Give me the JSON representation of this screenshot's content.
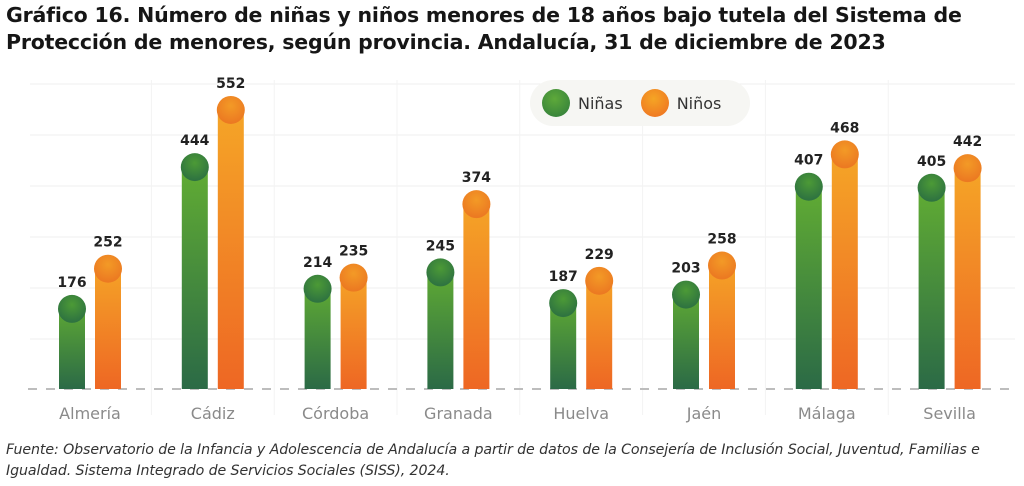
{
  "title": "Gráfico 16. Número de niñas y niños menores de 18 años bajo tutela del Sistema de Protección de menores, según provincia. Andalucía, 31 de diciembre de 2023",
  "source": "Fuente: Observatorio de la Infancia y Adolescencia de Andalucía a partir de datos de la Consejería de Inclusión Social, Juventud, Familias e Igualdad. Sistema Integrado de Servicios Sociales (SISS), 2024.",
  "legend": {
    "items": [
      {
        "label": "Niñas",
        "color": "#3f8f3a"
      },
      {
        "label": "Niños",
        "color": "#f28a23"
      }
    ]
  },
  "chart_data": {
    "type": "bar",
    "title": "Gráfico 16. Número de niñas y niños menores de 18 años bajo tutela del Sistema de Protección de menores, según provincia. Andalucía, 31 de diciembre de 2023",
    "xlabel": "",
    "ylabel": "",
    "categories": [
      "Almería",
      "Cádiz",
      "Córdoba",
      "Granada",
      "Huelva",
      "Jaén",
      "Málaga",
      "Sevilla"
    ],
    "series": [
      {
        "name": "Niñas",
        "values": [
          176,
          444,
          214,
          245,
          187,
          203,
          407,
          405
        ],
        "color_top": "#62ad35",
        "color_bottom": "#2c6e45"
      },
      {
        "name": "Niños",
        "values": [
          252,
          552,
          235,
          374,
          229,
          258,
          468,
          442
        ],
        "color_top": "#f5a627",
        "color_bottom": "#ee6a25"
      }
    ],
    "ylim": [
      0,
      600
    ],
    "grid": true,
    "data_labels": true,
    "legend_position": "top-right",
    "baseline_style": "dashed"
  }
}
